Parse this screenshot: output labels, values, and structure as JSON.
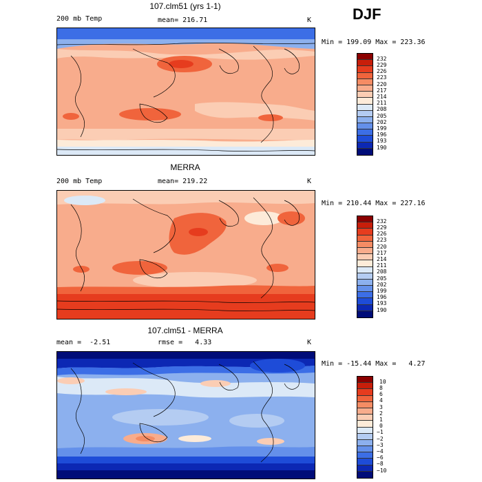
{
  "season": "DJF",
  "panels": [
    {
      "id": "model",
      "title": "107.clm51 (yrs 1-1)",
      "variable": "200 mb Temp",
      "stat_text": "mean= 216.71",
      "units": "K",
      "minmax": "Min = 199.09 Max = 223.36",
      "colorbar": {
        "labels": [
          "232",
          "229",
          "226",
          "223",
          "220",
          "217",
          "214",
          "211",
          "208",
          "205",
          "202",
          "199",
          "196",
          "193",
          "190"
        ],
        "colors": [
          "#8b0000",
          "#c81e0a",
          "#e63c1e",
          "#f0643c",
          "#f58c64",
          "#f8ac8c",
          "#fbcdb4",
          "#fdebd9",
          "#dce9f7",
          "#b4ccf2",
          "#8cb0ee",
          "#6490ea",
          "#3c6ee6",
          "#1e4cd8",
          "#0c28b4",
          "#000c78"
        ]
      }
    },
    {
      "id": "obs",
      "title": "MERRA",
      "variable": "200 mb Temp",
      "stat_text": "mean= 219.22",
      "units": "K",
      "minmax": "Min = 210.44 Max = 227.16",
      "colorbar": {
        "labels": [
          "232",
          "229",
          "226",
          "223",
          "220",
          "217",
          "214",
          "211",
          "208",
          "205",
          "202",
          "199",
          "196",
          "193",
          "190"
        ],
        "colors": [
          "#8b0000",
          "#c81e0a",
          "#e63c1e",
          "#f0643c",
          "#f58c64",
          "#f8ac8c",
          "#fbcdb4",
          "#fdebd9",
          "#dce9f7",
          "#b4ccf2",
          "#8cb0ee",
          "#6490ea",
          "#3c6ee6",
          "#1e4cd8",
          "#0c28b4",
          "#000c78"
        ]
      }
    },
    {
      "id": "diff",
      "title": "107.clm51 - MERRA",
      "mean_text": "mean =  -2.51",
      "rmse_text": "rmse =   4.33",
      "units": "K",
      "minmax": "Min = -15.44 Max =   4.27",
      "colorbar": {
        "labels": [
          "10",
          "8",
          "6",
          "4",
          "3",
          "2",
          "1",
          "0",
          "−1",
          "−2",
          "−3",
          "−4",
          "−6",
          "−8",
          "−10"
        ],
        "colors": [
          "#8b0000",
          "#c81e0a",
          "#e63c1e",
          "#f0643c",
          "#f58c64",
          "#f8ac8c",
          "#fbcdb4",
          "#fdebd9",
          "#dce9f7",
          "#b4ccf2",
          "#8cb0ee",
          "#6490ea",
          "#3c6ee6",
          "#1e4cd8",
          "#0c28b4",
          "#000c78"
        ]
      }
    }
  ]
}
